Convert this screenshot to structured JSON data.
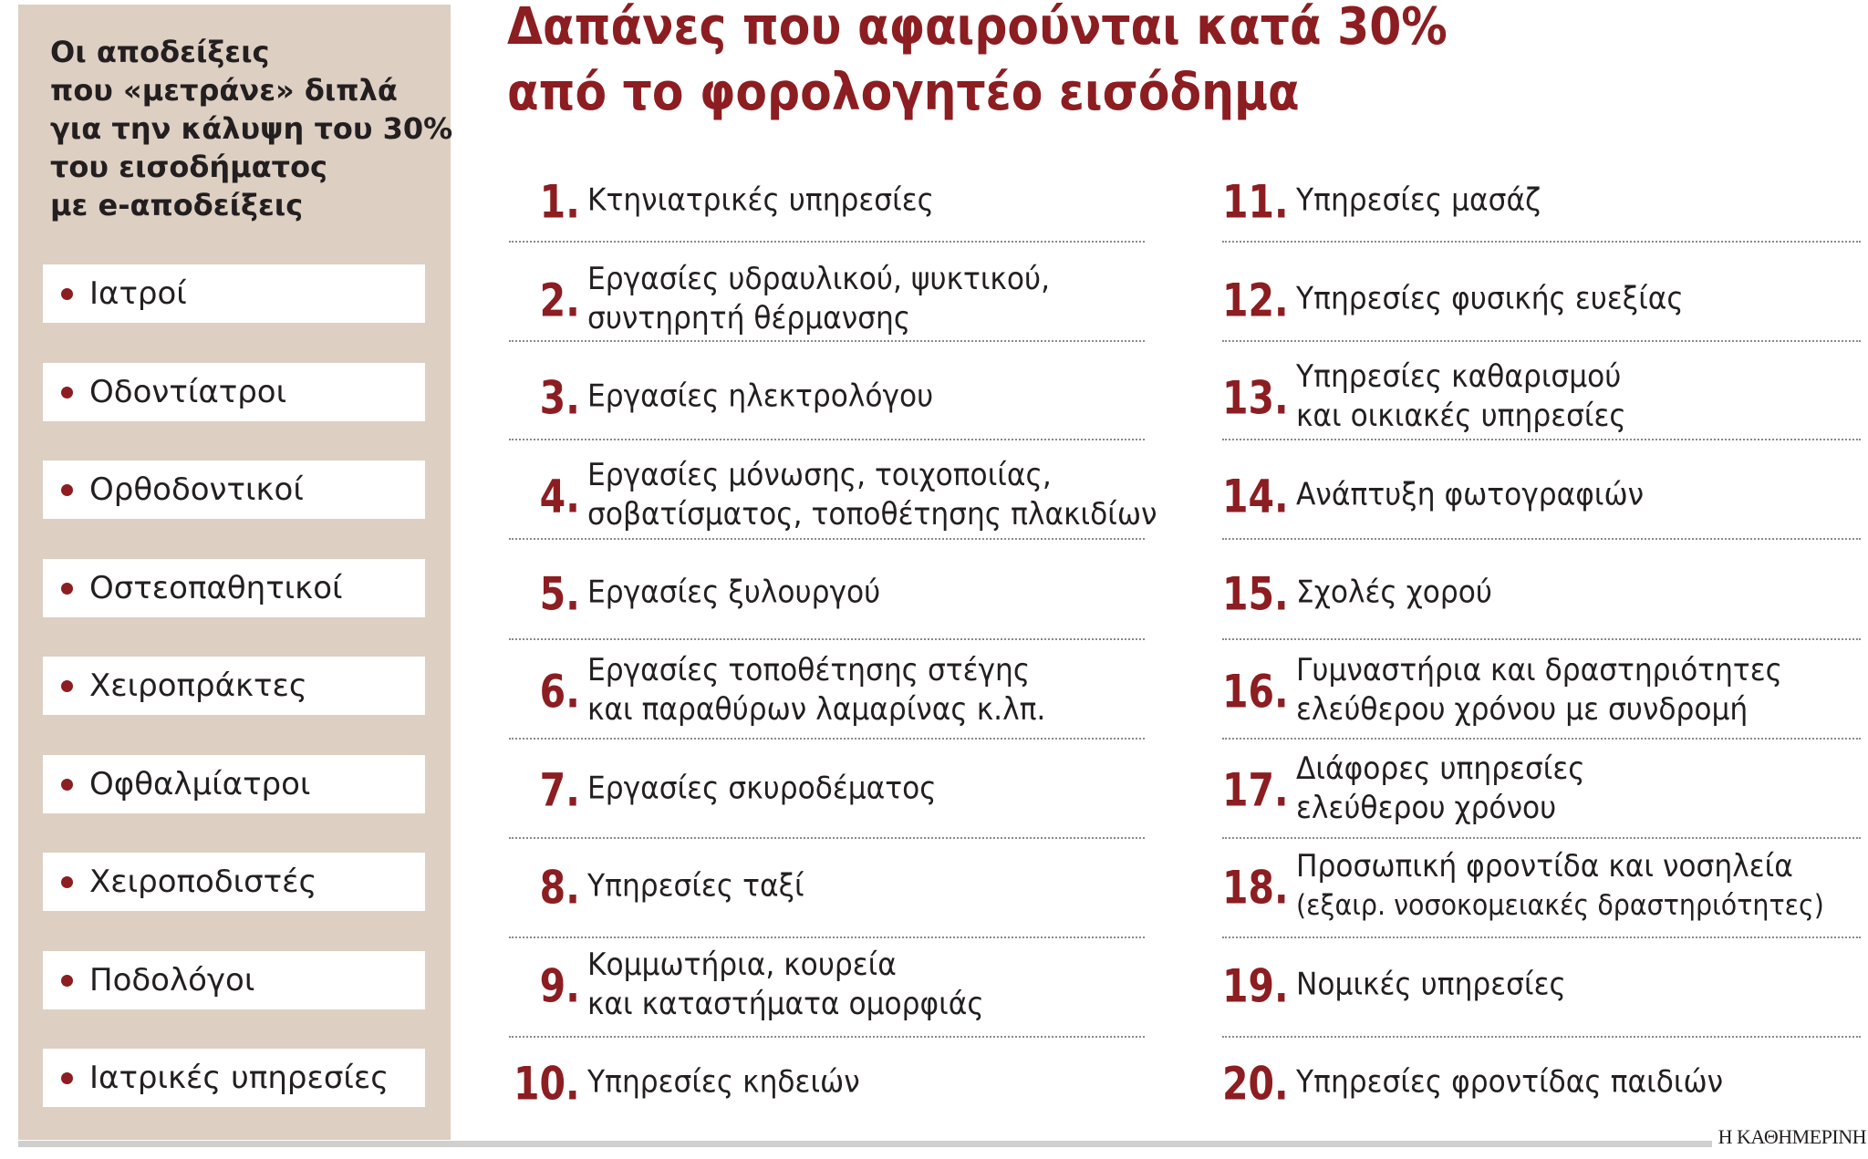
{
  "sidebar": {
    "intro_lines": [
      "Οι αποδείξεις",
      "που «μετράνε» διπλά",
      "για την κάλυψη του 30%",
      "του εισοδήματος",
      "με e-αποδείξεις"
    ],
    "items": [
      "Ιατροί",
      "Οδοντίατροι",
      "Ορθοδοντικοί",
      "Οστεοπαθητικοί",
      "Χειροπράκτες",
      "Οφθαλμίατροι",
      "Χειροποδιστές",
      "Ποδολόγοι",
      "Ιατρικές υπηρεσίες"
    ]
  },
  "title": {
    "line1": "Δαπάνες που αφαιρούνται κατά 30%",
    "line2": "από το φορολογητέο εισόδημα"
  },
  "expenses": [
    {
      "number": "1.",
      "lines": [
        "Κτηνιατρικές υπηρεσίες"
      ]
    },
    {
      "number": "2.",
      "lines": [
        "Εργασίες υδραυλικού, ψυκτικού,",
        "συντηρητή θέρμανσης"
      ]
    },
    {
      "number": "3.",
      "lines": [
        "Εργασίες ηλεκτρολόγου"
      ]
    },
    {
      "number": "4.",
      "lines": [
        "Εργασίες μόνωσης, τοιχοποιίας,",
        "σοβατίσματος, τοποθέτησης πλακιδίων"
      ]
    },
    {
      "number": "5.",
      "lines": [
        "Εργασίες ξυλουργού"
      ]
    },
    {
      "number": "6.",
      "lines": [
        "Εργασίες τοποθέτησης στέγης",
        "και παραθύρων λαμαρίνας κ.λπ."
      ]
    },
    {
      "number": "7.",
      "lines": [
        "Εργασίες σκυροδέματος"
      ]
    },
    {
      "number": "8.",
      "lines": [
        "Υπηρεσίες ταξί"
      ]
    },
    {
      "number": "9.",
      "lines": [
        "Κομμωτήρια, κουρεία",
        "και καταστήματα ομορφιάς"
      ]
    },
    {
      "number": "10.",
      "lines": [
        "Υπηρεσίες κηδειών"
      ]
    },
    {
      "number": "11.",
      "lines": [
        "Υπηρεσίες μασάζ"
      ]
    },
    {
      "number": "12.",
      "lines": [
        "Υπηρεσίες φυσικής ευεξίας"
      ]
    },
    {
      "number": "13.",
      "lines": [
        "Υπηρεσίες καθαρισμού",
        "και οικιακές υπηρεσίες"
      ]
    },
    {
      "number": "14.",
      "lines": [
        "Ανάπτυξη φωτογραφιών"
      ]
    },
    {
      "number": "15.",
      "lines": [
        "Σχολές χορού"
      ]
    },
    {
      "number": "16.",
      "lines": [
        "Γυμναστήρια και δραστηριότητες",
        "ελεύθερου χρόνου με συνδρομή"
      ]
    },
    {
      "number": "17.",
      "lines": [
        "Διάφορες υπηρεσίες",
        "ελεύθερου χρόνου"
      ]
    },
    {
      "number": "18.",
      "lines": [
        "Προσωπική φροντίδα και νοσηλεία",
        "(εξαιρ. νοσοκομειακές δραστηριότητες)"
      ]
    },
    {
      "number": "19.",
      "lines": [
        "Νομικές υπηρεσίες"
      ]
    },
    {
      "number": "20.",
      "lines": [
        "Υπηρεσίες φροντίδας παιδιών"
      ]
    }
  ],
  "footer": {
    "brand": "Η ΚΑΘΗΜΕΡΙΝΗ"
  },
  "colors": {
    "accent": "#8c1d21",
    "sidebar_bg": "#ddcfc2",
    "text": "#231f20"
  }
}
